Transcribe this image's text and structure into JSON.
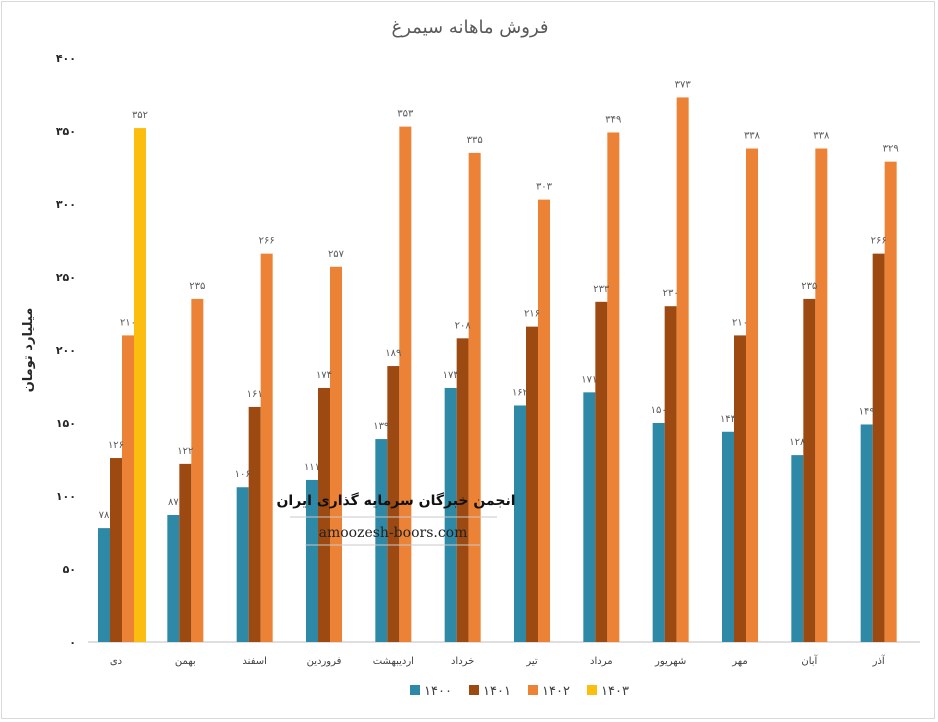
{
  "chart_data": {
    "type": "bar",
    "title": "فروش ماهانه سیمرغ",
    "ylabel": "میلیارد تومان",
    "xlabel": "",
    "ylim": [
      0,
      400
    ],
    "yticks": [
      0,
      50,
      100,
      150,
      200,
      250,
      300,
      350,
      400
    ],
    "ytick_labels": [
      "۰",
      "۵۰",
      "۱۰۰",
      "۱۵۰",
      "۲۰۰",
      "۲۵۰",
      "۳۰۰",
      "۳۵۰",
      "۴۰۰"
    ],
    "grid": false,
    "legend_position": "bottom",
    "categories": [
      "دی",
      "بهمن",
      "اسفند",
      "فروردین",
      "اردیبهشت",
      "خرداد",
      "تیر",
      "مرداد",
      "شهریور",
      "مهر",
      "آبان",
      "آذر"
    ],
    "series": [
      {
        "name": "۱۴۰۰",
        "color": "#2e89a6",
        "values": [
          78,
          87,
          106,
          111,
          139,
          174,
          162,
          171,
          150,
          144,
          128,
          149
        ],
        "labels": [
          "۷۸",
          "۸۷",
          "۱۰۶",
          "۱۱۱",
          "۱۳۹",
          "۱۷۴",
          "۱۶۲",
          "۱۷۱",
          "۱۵۰",
          "۱۴۴",
          "۱۲۸",
          "۱۴۹"
        ]
      },
      {
        "name": "۱۴۰۱",
        "color": "#9c4a12",
        "values": [
          126,
          122,
          161,
          174,
          189,
          208,
          216,
          233,
          230,
          210,
          235,
          266
        ],
        "labels": [
          "۱۲۶",
          "۱۲۲",
          "۱۶۱",
          "۱۷۴",
          "۱۸۹",
          "۲۰۸",
          "۲۱۶",
          "۲۳۳",
          "۲۳۰",
          "۲۱۰",
          "۲۳۵",
          "۲۶۶"
        ]
      },
      {
        "name": "۱۴۰۲",
        "color": "#ec8236",
        "values": [
          210,
          235,
          266,
          257,
          353,
          335,
          303,
          349,
          373,
          338,
          338,
          329
        ],
        "labels": [
          "۲۱۰",
          "۲۳۵",
          "۲۶۶",
          "۲۵۷",
          "۳۵۳",
          "۳۳۵",
          "۳۰۳",
          "۳۴۹",
          "۳۷۳",
          "۳۳۸",
          "۳۳۸",
          "۳۲۹"
        ]
      },
      {
        "name": "۱۴۰۳",
        "color": "#fcbe0e",
        "values": [
          352,
          null,
          null,
          null,
          null,
          null,
          null,
          null,
          null,
          null,
          null,
          null
        ],
        "labels": [
          "۳۵۲",
          "",
          "",
          "",
          "",
          "",
          "",
          "",
          "",
          "",
          "",
          ""
        ]
      }
    ]
  },
  "watermark": {
    "line1": "انجمن خبرگان سرمایه گذاری ایران",
    "line2": "amoozesh-boors.com"
  }
}
